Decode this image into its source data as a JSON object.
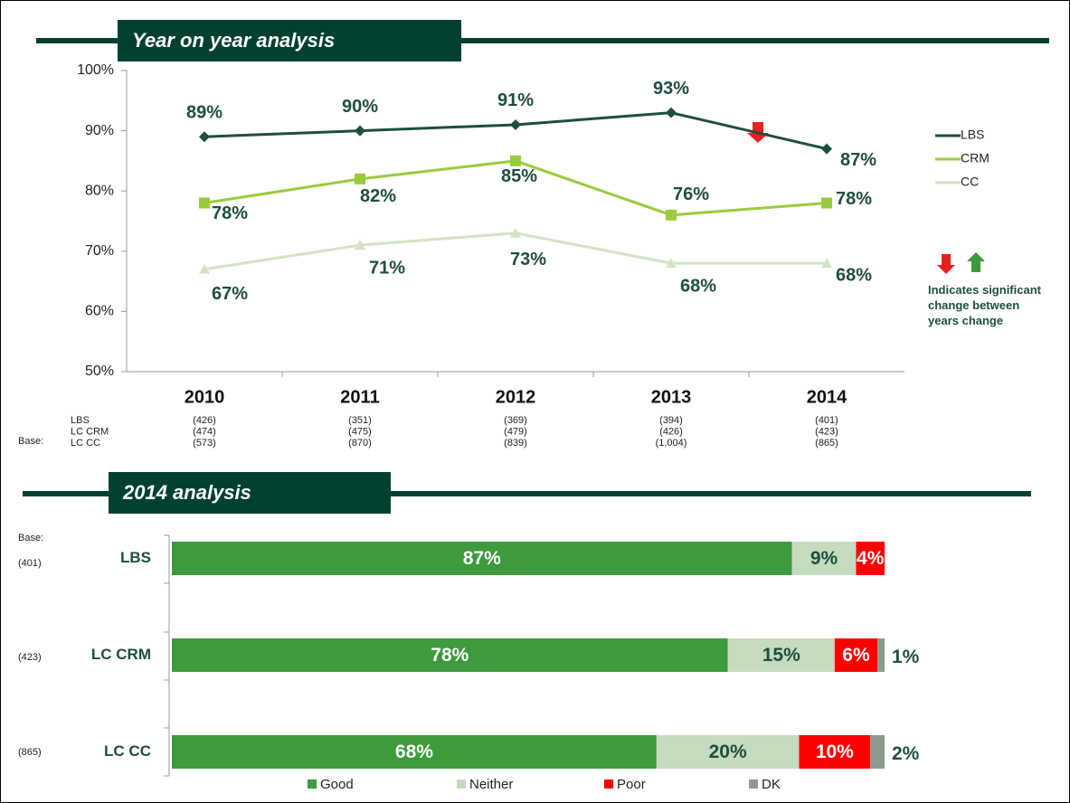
{
  "chart_data": [
    {
      "type": "line",
      "title": "Year on year analysis",
      "categories": [
        "2010",
        "2011",
        "2012",
        "2013",
        "2014"
      ],
      "series": [
        {
          "name": "LBS",
          "color": "#1f4e3d",
          "marker": "diamond",
          "values": [
            89,
            90,
            91,
            93,
            87
          ],
          "value_labels": [
            "89%",
            "90%",
            "91%",
            "93%",
            "87%"
          ]
        },
        {
          "name": "CRM",
          "color": "#9acb3c",
          "marker": "square",
          "values": [
            78,
            82,
            85,
            76,
            78
          ],
          "value_labels": [
            "78%",
            "82%",
            "85%",
            "76%",
            "78%"
          ]
        },
        {
          "name": "CC",
          "color": "#d5e3c5",
          "marker": "triangle",
          "values": [
            67,
            71,
            73,
            68,
            68
          ],
          "value_labels": [
            "67%",
            "71%",
            "73%",
            "68%",
            "68%"
          ]
        }
      ],
      "ylim": [
        50,
        100
      ],
      "yticks": [
        {
          "value": 50,
          "label": "50%"
        },
        {
          "value": 60,
          "label": "60%"
        },
        {
          "value": 70,
          "label": "70%"
        },
        {
          "value": 80,
          "label": "80%"
        },
        {
          "value": 90,
          "label": "90%"
        },
        {
          "value": 100,
          "label": "100%"
        }
      ],
      "legend": "right",
      "note": "Indicates significant change between years change",
      "base": {
        "label": "Base:",
        "rows": [
          {
            "name": "LBS",
            "values": [
              "(426)",
              "(351)",
              "(369)",
              "(394)",
              "(401)"
            ]
          },
          {
            "name": "LC CRM",
            "values": [
              "(474)",
              "(475)",
              "(479)",
              "(426)",
              "(423)"
            ]
          },
          {
            "name": "LC CC",
            "values": [
              "(573)",
              "(870)",
              "(839)",
              "(1,004)",
              "(865)"
            ]
          }
        ]
      }
    },
    {
      "type": "bar",
      "orientation": "horizontal",
      "stacked": true,
      "title": "2014 analysis",
      "categories": [
        "LBS",
        "LC CRM",
        "LC CC"
      ],
      "series": [
        {
          "name": "Good",
          "color": "#3d9a3d",
          "values": [
            87,
            78,
            68
          ],
          "value_labels": [
            "87%",
            "78%",
            "68%"
          ]
        },
        {
          "name": "Neither",
          "color": "#c4dbbf",
          "values": [
            9,
            15,
            20
          ],
          "value_labels": [
            "9%",
            "15%",
            "20%"
          ]
        },
        {
          "name": "Poor",
          "color": "#ff0000",
          "values": [
            4,
            6,
            10
          ],
          "value_labels": [
            "4%",
            "6%",
            "10%"
          ]
        },
        {
          "name": "DK",
          "color": "#8a9a8e",
          "values": [
            0,
            1,
            2
          ],
          "value_labels": [
            null,
            "1%",
            "2%"
          ]
        }
      ],
      "xlim": [
        0,
        100
      ],
      "legend": "bottom",
      "base": {
        "label": "Base:",
        "values": [
          "(401)",
          "(423)",
          "(865)"
        ]
      }
    }
  ]
}
